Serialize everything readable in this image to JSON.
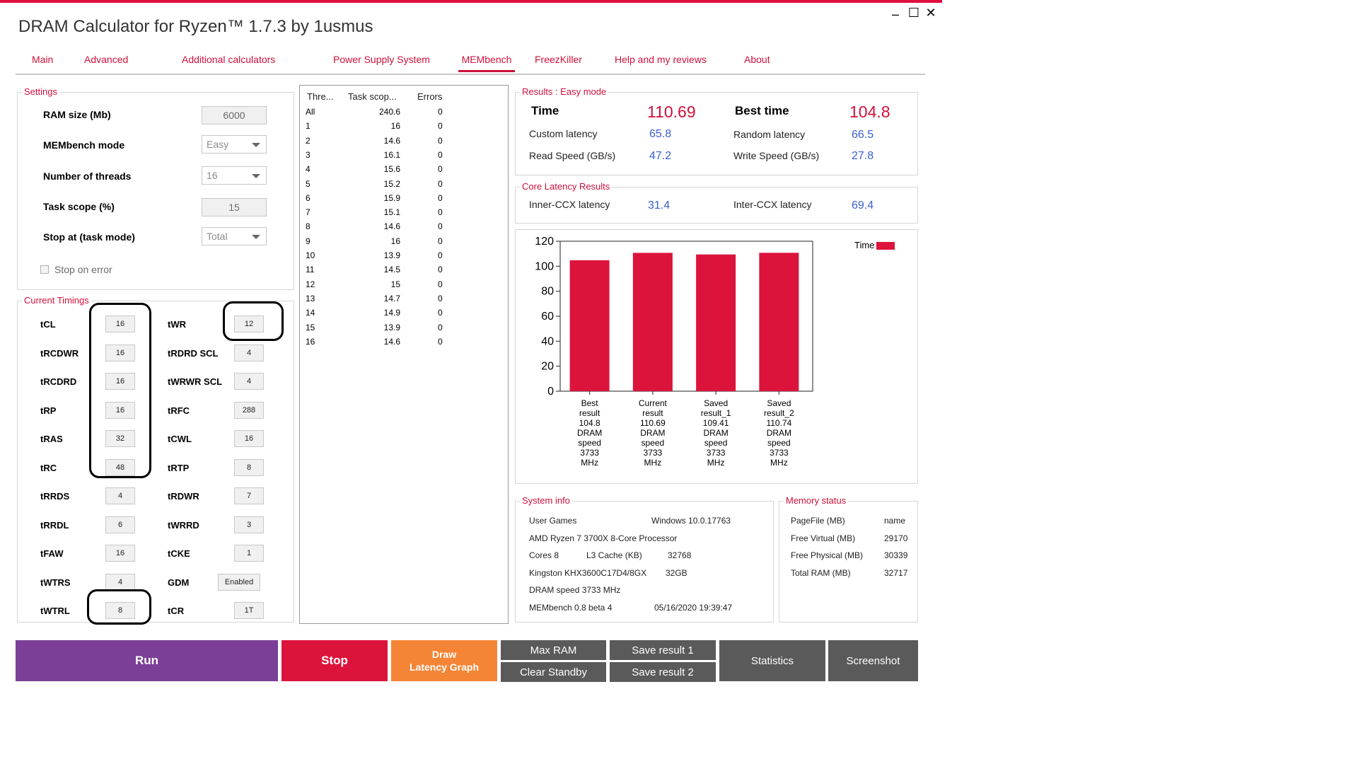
{
  "app": {
    "title": "DRAM Calculator for Ryzen™ 1.7.3 by 1usmus",
    "minimize": "–",
    "maximize": "☐",
    "close": "✕"
  },
  "tabs": [
    {
      "label": "Main"
    },
    {
      "label": "Advanced"
    },
    {
      "label": "Additional calculators"
    },
    {
      "label": "Power Supply System"
    },
    {
      "label": "MEMbench"
    },
    {
      "label": "FreezKiller"
    },
    {
      "label": "Help and my reviews"
    },
    {
      "label": "About"
    }
  ],
  "settings": {
    "title": "Settings",
    "ram_size_label": "RAM size (Mb)",
    "ram_size_value": "6000",
    "mode_label": "MEMbench mode",
    "mode_value": "Easy",
    "threads_label": "Number of threads",
    "threads_value": "16",
    "scope_label": "Task scope (%)",
    "scope_value": "15",
    "stop_label": "Stop at (task mode)",
    "stop_value": "Total",
    "stop_on_error_label": "Stop on error"
  },
  "timings": {
    "title": "Current Timings",
    "left": [
      {
        "label": "tCL",
        "value": "16"
      },
      {
        "label": "tRCDWR",
        "value": "16"
      },
      {
        "label": "tRCDRD",
        "value": "16"
      },
      {
        "label": "tRP",
        "value": "16"
      },
      {
        "label": "tRAS",
        "value": "32"
      },
      {
        "label": "tRC",
        "value": "48"
      },
      {
        "label": "tRRDS",
        "value": "4"
      },
      {
        "label": "tRRDL",
        "value": "6"
      },
      {
        "label": "tFAW",
        "value": "16"
      },
      {
        "label": "tWTRS",
        "value": "4"
      },
      {
        "label": "tWTRL",
        "value": "8"
      }
    ],
    "right": [
      {
        "label": "tWR",
        "value": "12"
      },
      {
        "label": "tRDRD SCL",
        "value": "4"
      },
      {
        "label": "tWRWR SCL",
        "value": "4"
      },
      {
        "label": "tRFC",
        "value": "288"
      },
      {
        "label": "tCWL",
        "value": "16"
      },
      {
        "label": "tRTP",
        "value": "8"
      },
      {
        "label": "tRDWR",
        "value": "7"
      },
      {
        "label": "tWRRD",
        "value": "3"
      },
      {
        "label": "tCKE",
        "value": "1"
      },
      {
        "label": "GDM",
        "value": "Enabled"
      },
      {
        "label": "tCR",
        "value": "1T"
      }
    ]
  },
  "threads_table": {
    "headers": [
      "Thre...",
      "Task scop...",
      "Errors"
    ],
    "rows": [
      [
        "All",
        "240.6",
        "0"
      ],
      [
        "1",
        "16",
        "0"
      ],
      [
        "2",
        "14.6",
        "0"
      ],
      [
        "3",
        "16.1",
        "0"
      ],
      [
        "4",
        "15.6",
        "0"
      ],
      [
        "5",
        "15.2",
        "0"
      ],
      [
        "6",
        "15.9",
        "0"
      ],
      [
        "7",
        "15.1",
        "0"
      ],
      [
        "8",
        "14.6",
        "0"
      ],
      [
        "9",
        "16",
        "0"
      ],
      [
        "10",
        "13.9",
        "0"
      ],
      [
        "11",
        "14.5",
        "0"
      ],
      [
        "12",
        "15",
        "0"
      ],
      [
        "13",
        "14.7",
        "0"
      ],
      [
        "14",
        "14.9",
        "0"
      ],
      [
        "15",
        "13.9",
        "0"
      ],
      [
        "16",
        "14.6",
        "0"
      ]
    ]
  },
  "results": {
    "title": "Results : Easy mode",
    "time_label": "Time",
    "time_value": "110.69",
    "best_label": "Best time",
    "best_value": "104.8",
    "custom_latency_label": "Custom latency",
    "custom_latency_value": "65.8",
    "random_latency_label": "Random latency",
    "random_latency_value": "66.5",
    "read_label": "Read Speed (GB/s)",
    "read_value": "47.2",
    "write_label": "Write Speed (GB/s)",
    "write_value": "27.8"
  },
  "core_latency": {
    "title": "Core Latency Results",
    "inner_label": "Inner-CCX latency",
    "inner_value": "31.4",
    "inter_label": "Inter-CCX latency",
    "inter_value": "69.4"
  },
  "chart_data": {
    "type": "bar",
    "categories": [
      [
        "Best",
        "result",
        "104.8",
        "DRAM",
        "speed",
        "3733",
        "MHz"
      ],
      [
        "Current",
        "result",
        "110.69",
        "DRAM",
        "speed",
        "3733",
        "MHz"
      ],
      [
        "Saved",
        "result_1",
        "109.41",
        "DRAM",
        "speed",
        "3733",
        "MHz"
      ],
      [
        "Saved",
        "result_2",
        "110.74",
        "DRAM",
        "speed",
        "3733",
        "MHz"
      ]
    ],
    "series": [
      {
        "name": "Time",
        "values": [
          104.8,
          110.69,
          109.41,
          110.74
        ],
        "color": "#dc143c"
      }
    ],
    "ylim": [
      0,
      120
    ],
    "yticks": [
      "0",
      "20",
      "40",
      "60",
      "80",
      "100",
      "120"
    ],
    "legend": "top-right",
    "grid": false
  },
  "system_info": {
    "title": "System info",
    "user": "User Games",
    "os": "Windows 10.0.17763",
    "cpu": "AMD Ryzen 7 3700X 8-Core Processor",
    "cores_label": "Cores 8",
    "l3_label": "L3 Cache (KB)",
    "l3_value": "32768",
    "ram_model": "Kingston KHX3600C17D4/8GX",
    "ram_size": "32GB",
    "dram_speed": "DRAM speed 3733 MHz",
    "membench_ver": "MEMbench 0.8 beta 4",
    "datetime": "05/16/2020 19:39:47"
  },
  "memory_status": {
    "title": "Memory status",
    "rows": [
      [
        "PageFile (MB)",
        "name"
      ],
      [
        "Free Virtual (MB)",
        "29170"
      ],
      [
        "Free Physical (MB)",
        "30339"
      ],
      [
        "Total RAM (MB)",
        "32717"
      ]
    ]
  },
  "buttons": {
    "run": "Run",
    "stop": "Stop",
    "draw_line1": "Draw",
    "draw_line2": "Latency Graph",
    "max_ram": "Max RAM",
    "clear_standby": "Clear Standby",
    "save1": "Save result 1",
    "save2": "Save result 2",
    "statistics": "Statistics",
    "screenshot": "Screenshot",
    "colors": {
      "run": "#7b3f98",
      "stop": "#dc143c",
      "draw": "#f58536",
      "grey": "#5a5a5a"
    }
  }
}
